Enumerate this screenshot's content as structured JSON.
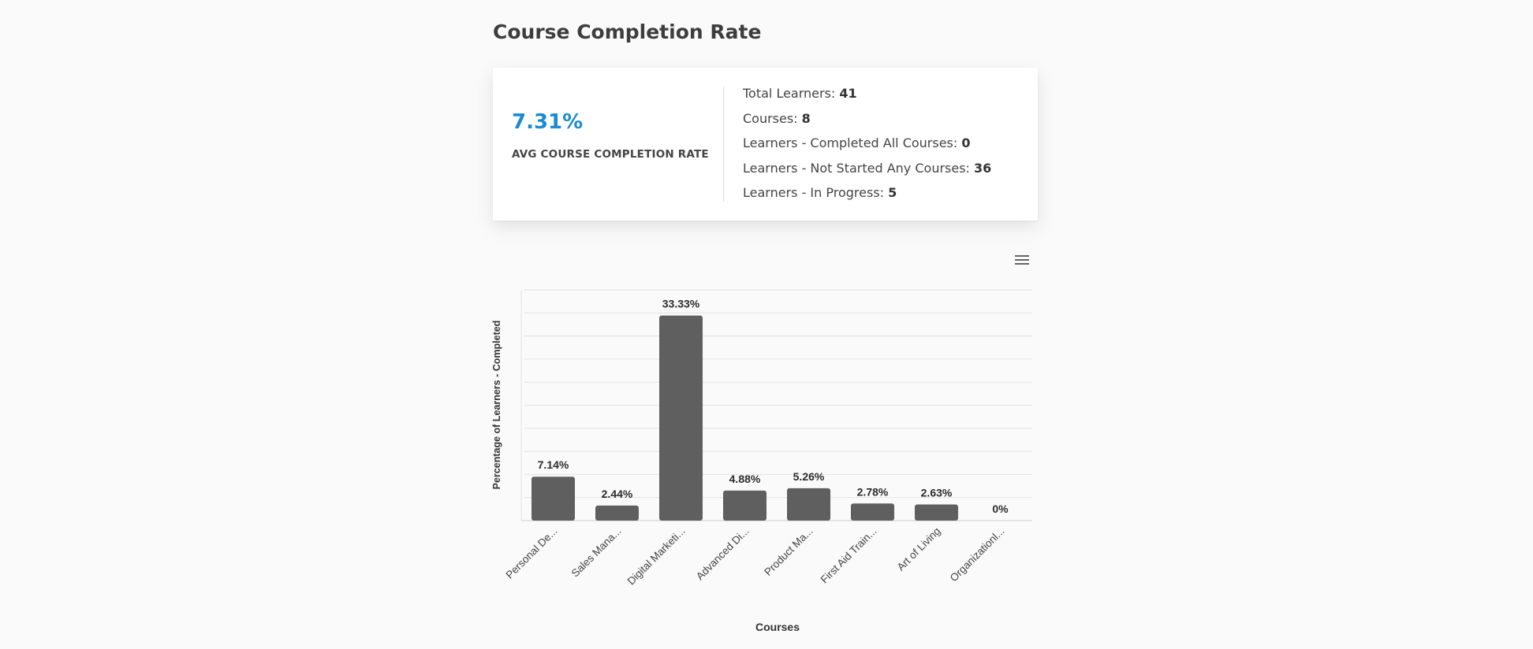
{
  "page": {
    "title": "Course Completion Rate"
  },
  "summary": {
    "avg_value": "7.31%",
    "avg_label": "AVG COURSE COMPLETION RATE",
    "stats": [
      {
        "label": "Total Learners: ",
        "value": "41"
      },
      {
        "label": "Courses: ",
        "value": "8"
      },
      {
        "label": "Learners - Completed All Courses: ",
        "value": "0"
      },
      {
        "label": "Learners - Not Started Any Courses: ",
        "value": "36"
      },
      {
        "label": "Learners - In Progress: ",
        "value": "5"
      }
    ]
  },
  "toolbar": {
    "menu_icon": "hamburger-menu-icon"
  },
  "colors": {
    "accent": "#1a8ad4",
    "bar": "#5f5f5f",
    "grid": "#e3e3e3"
  },
  "chart_data": {
    "type": "bar",
    "categories": [
      "Personal De...",
      "Sales Mana...",
      "Digital Marketi...",
      "Advanced Di...",
      "Product Ma...",
      "First Aid Train...",
      "Art of Living",
      "Organizationl..."
    ],
    "values": [
      7.14,
      2.44,
      33.33,
      4.88,
      5.26,
      2.78,
      2.63,
      0
    ],
    "data_labels": [
      "7.14%",
      "2.44%",
      "33.33%",
      "4.88%",
      "5.26%",
      "2.78%",
      "2.63%",
      "0%"
    ],
    "xlabel": "Courses",
    "ylabel": "Percentage of Learners - Completed",
    "ylim": [
      0,
      37.5
    ],
    "grid": true,
    "legend": false
  }
}
